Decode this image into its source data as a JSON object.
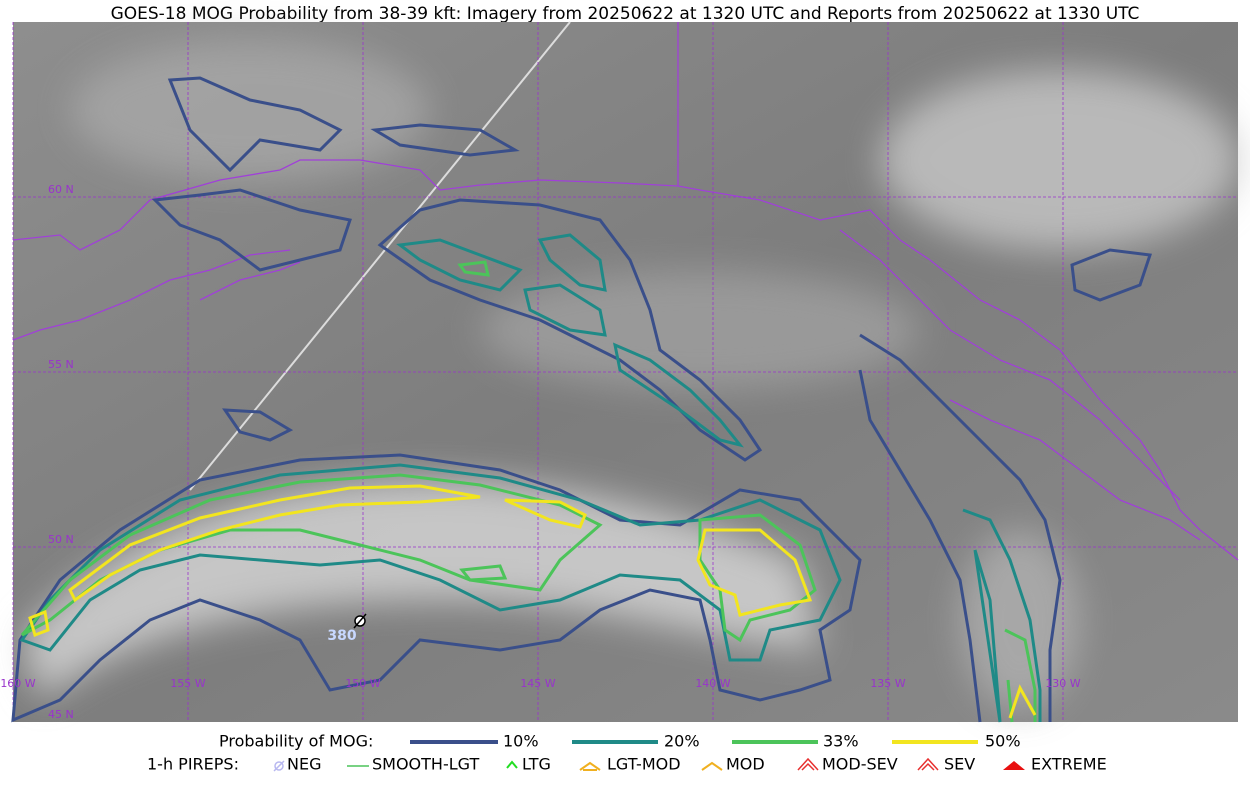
{
  "title": "GOES-18 MOG Probability from 38-39 kft: Imagery from 20250622 at 1320 UTC and Reports from 20250622 at 1330 UTC",
  "map": {
    "lat_labels": [
      "60 N",
      "55 N",
      "50 N",
      "45 N"
    ],
    "lon_labels": [
      "160 W",
      "155 W",
      "150 W",
      "145 W",
      "140 W",
      "135 W",
      "130 W"
    ],
    "report_label": "380"
  },
  "legend": {
    "probability": {
      "label": "Probability of MOG:",
      "items": [
        "10%",
        "20%",
        "33%",
        "50%"
      ]
    },
    "pireps": {
      "label": "1-h PIREPS:",
      "items": [
        "NEG",
        "SMOOTH-LGT",
        "LTG",
        "LGT-MOD",
        "MOD",
        "MOD-SEV",
        "SEV",
        "EXTREME"
      ]
    }
  }
}
